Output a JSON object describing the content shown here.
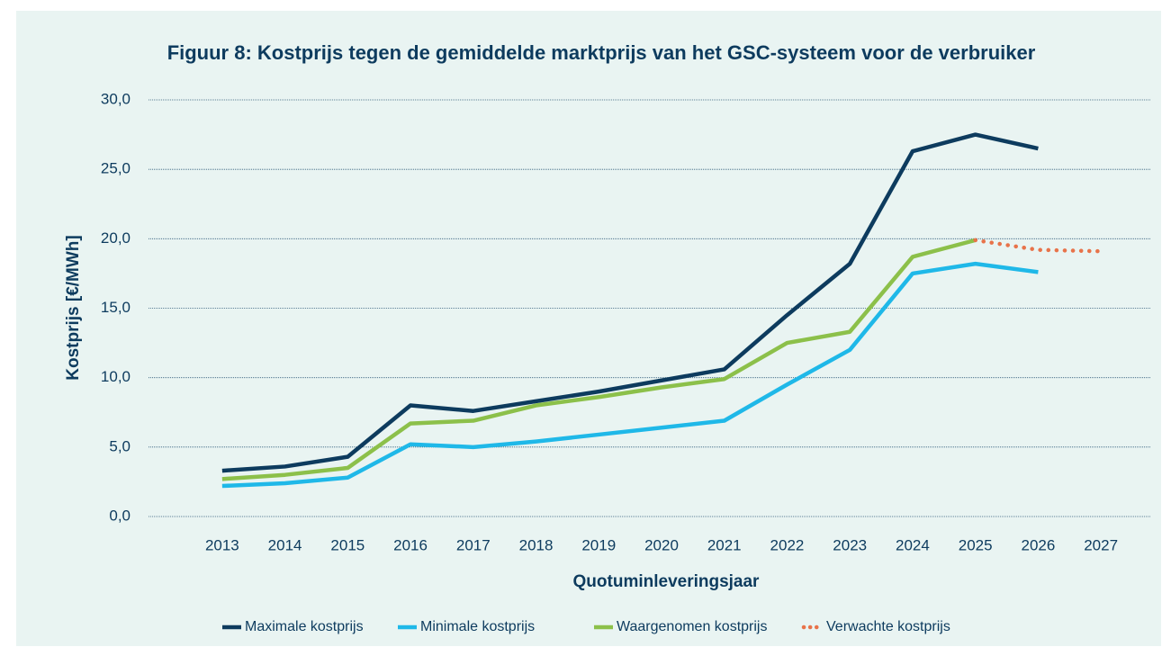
{
  "chart_data": {
    "type": "line",
    "title": "Figuur 8: Kostprijs tegen de gemiddelde marktprijs van het GSC-systeem voor de verbruiker",
    "x_label": "Quotuminleveringsjaar",
    "y_label": "Kostprijs [€/MWh]",
    "categories": [
      "2013",
      "2014",
      "2015",
      "2016",
      "2017",
      "2018",
      "2019",
      "2020",
      "2021",
      "2022",
      "2023",
      "2024",
      "2025",
      "2026",
      "2027"
    ],
    "series": [
      {
        "name": "Maximale kostprijs",
        "color": "#0d3b5e",
        "style": "solid",
        "values": [
          3.3,
          3.6,
          4.3,
          8.0,
          7.6,
          8.3,
          9.0,
          9.8,
          10.6,
          14.5,
          18.2,
          26.3,
          27.5,
          26.5,
          null
        ]
      },
      {
        "name": "Minimale kostprijs",
        "color": "#1fb8e8",
        "style": "solid",
        "values": [
          2.2,
          2.4,
          2.8,
          5.2,
          5.0,
          5.4,
          5.9,
          6.4,
          6.9,
          9.5,
          12.0,
          17.5,
          18.2,
          17.6,
          null
        ]
      },
      {
        "name": "Waargenomen kostprijs",
        "color": "#8cc04a",
        "style": "solid",
        "values": [
          2.7,
          3.0,
          3.5,
          6.7,
          6.9,
          8.0,
          8.6,
          9.3,
          9.9,
          12.5,
          13.3,
          18.7,
          19.9,
          null,
          null
        ]
      },
      {
        "name": "Verwachte kostprijs",
        "color": "#e8734a",
        "style": "dotted",
        "values": [
          null,
          null,
          null,
          null,
          null,
          null,
          null,
          null,
          null,
          null,
          null,
          null,
          19.9,
          19.2,
          19.1
        ]
      }
    ],
    "ylim": [
      0,
      30
    ],
    "yticks": [
      {
        "value": 0,
        "label": "0,0"
      },
      {
        "value": 5,
        "label": "5,0"
      },
      {
        "value": 10,
        "label": "10,0"
      },
      {
        "value": 15,
        "label": "15,0"
      },
      {
        "value": 20,
        "label": "20,0"
      },
      {
        "value": 25,
        "label": "25,0"
      },
      {
        "value": 30,
        "label": "30,0"
      }
    ],
    "grid": true,
    "legend": "bottom"
  }
}
